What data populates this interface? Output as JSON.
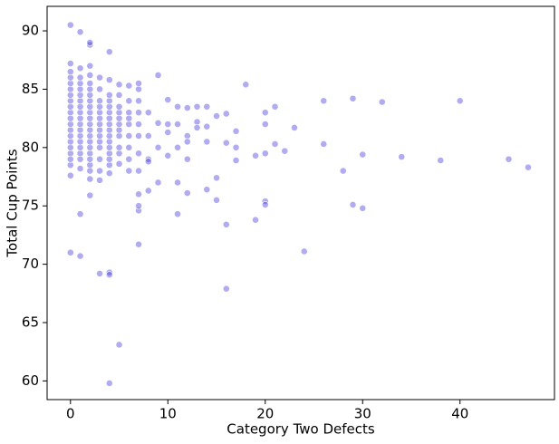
{
  "chart_data": {
    "type": "scatter",
    "x_label": "Category Two Defects",
    "y_label": "Total Cup Points",
    "color": "#3b30d9",
    "alpha": 0.4,
    "xlim": [
      -2.4,
      49.7
    ],
    "xticks": [
      0,
      10,
      20,
      30,
      40
    ],
    "ylim": [
      58.4,
      92.1
    ],
    "yticks": [
      60,
      65,
      70,
      75,
      80,
      85,
      90
    ],
    "grid": false,
    "x": [
      0,
      0,
      0,
      0,
      0,
      0,
      0,
      0,
      0,
      0,
      0,
      0,
      0,
      0,
      0,
      0,
      0,
      0,
      0,
      0,
      0,
      1,
      1,
      1,
      1,
      1,
      1,
      1,
      1,
      1,
      1,
      1,
      1,
      1,
      1,
      1,
      1,
      1,
      1,
      1,
      1,
      2,
      2,
      2,
      2,
      2,
      2,
      2,
      2,
      2,
      2,
      2,
      2,
      2,
      2,
      2,
      2,
      2,
      2,
      2,
      2,
      2,
      2,
      3,
      3,
      3,
      3,
      3,
      3,
      3,
      3,
      3,
      3,
      3,
      3,
      3,
      3,
      3,
      4,
      4,
      4,
      4,
      4,
      4,
      4,
      4,
      4,
      4,
      4,
      4,
      4,
      4,
      4,
      4,
      4,
      4,
      4,
      5,
      5,
      5,
      5,
      5,
      5,
      5,
      5,
      5,
      5,
      5,
      5,
      6,
      6,
      6,
      6,
      6,
      6,
      6,
      6,
      6,
      7,
      7,
      7,
      7,
      7,
      7,
      7,
      7,
      7,
      7,
      7,
      7,
      8,
      9,
      11,
      12,
      14,
      15,
      15,
      16,
      16,
      19,
      20,
      20,
      24,
      29,
      30,
      18,
      17,
      17,
      17,
      19,
      20,
      20,
      20,
      21,
      21,
      22,
      23,
      26,
      26,
      28,
      29,
      30,
      32,
      34,
      38,
      40,
      45,
      47,
      16,
      16,
      15,
      14,
      14,
      14,
      13,
      13,
      13,
      12,
      12,
      12,
      12,
      11,
      11,
      11,
      11,
      10,
      10,
      10,
      10,
      9,
      9,
      9,
      8,
      8,
      8,
      8
    ],
    "values": [
      77.6,
      78.5,
      79,
      79.5,
      80,
      80.5,
      81,
      81.5,
      82,
      82.5,
      83,
      83.5,
      84,
      84.5,
      85,
      85.5,
      86,
      86.5,
      87.2,
      90.5,
      71,
      78.2,
      79,
      79.5,
      80,
      80.5,
      81,
      81.5,
      82,
      82.5,
      83,
      83.5,
      84,
      84.5,
      85,
      85.5,
      86,
      86.8,
      89.9,
      70.7,
      74.3,
      77.3,
      78,
      78.5,
      79,
      79.5,
      80,
      80.5,
      81,
      81.5,
      82,
      82.5,
      83,
      83.5,
      84,
      84.5,
      85,
      85.5,
      86.2,
      87,
      88.8,
      89,
      75.9,
      77.2,
      78,
      79,
      80,
      80.5,
      81,
      81.5,
      82,
      82.5,
      83,
      83.5,
      84,
      85,
      86,
      69.2,
      77.8,
      78.5,
      79,
      79.5,
      80,
      80.5,
      81,
      81.5,
      82,
      82.5,
      83,
      83.5,
      84,
      84.5,
      85.8,
      88.2,
      69.3,
      69.1,
      59.8,
      78.6,
      79.5,
      80,
      81,
      81.5,
      82,
      82.5,
      83,
      83.5,
      84.5,
      85.4,
      63.1,
      78,
      79,
      80,
      81,
      82,
      82.5,
      83,
      84,
      85.3,
      78,
      79.5,
      81,
      82,
      83,
      84,
      85,
      85.5,
      71.7,
      74.6,
      75,
      76,
      76.3,
      77,
      74.3,
      76.1,
      76.4,
      77.4,
      75.5,
      73.4,
      67.9,
      73.8,
      75.4,
      75.1,
      71.1,
      75.1,
      74.8,
      85.4,
      81.4,
      80,
      78.9,
      79.3,
      79.5,
      82,
      83,
      83.5,
      80.3,
      79.7,
      81.7,
      84,
      80.3,
      78,
      84.2,
      79.4,
      83.9,
      79.2,
      78.9,
      84,
      79,
      78.3,
      82.9,
      80.4,
      82.7,
      83.5,
      81.8,
      80.5,
      83.5,
      82.2,
      81.7,
      83.4,
      81,
      80.5,
      79,
      83.5,
      82,
      80,
      77,
      84.1,
      82,
      81.3,
      79.3,
      86.2,
      82.1,
      80,
      83,
      81,
      79,
      78.8
    ]
  }
}
